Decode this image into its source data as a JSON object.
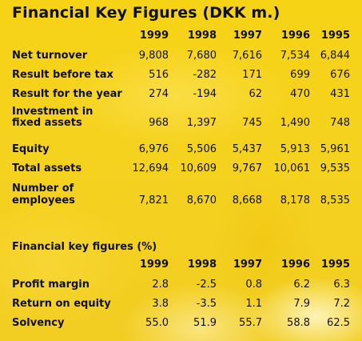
{
  "title": "Financial Key Figures (DKK m.)",
  "years": [
    "1999",
    "1998",
    "1997",
    "1996",
    "1995"
  ],
  "rows": [
    {
      "label_1": "Net turnover",
      "label_2": "",
      "values": [
        "9,808",
        "7,680",
        "7,616",
        "7,534",
        "6,844"
      ]
    },
    {
      "label_1": "Result before tax",
      "label_2": "",
      "values": [
        "516",
        "-282",
        "171",
        "699",
        "676"
      ]
    },
    {
      "label_1": "Result for the year",
      "label_2": "",
      "values": [
        "274",
        "-194",
        "62",
        "470",
        "431"
      ]
    },
    {
      "label_1": "Investment in",
      "label_2": "fixed assets",
      "values": [
        "968",
        "1,397",
        "745",
        "1,490",
        "748"
      ]
    },
    {
      "label_1": "Equity",
      "label_2": "",
      "values": [
        "6,976",
        "5,506",
        "5,437",
        "5,913",
        "5,961"
      ]
    },
    {
      "label_1": "Total assets",
      "label_2": "",
      "values": [
        "12,694",
        "10,609",
        "9,767",
        "10,061",
        "9,535"
      ]
    },
    {
      "label_1": "Number of",
      "label_2": "employees",
      "values": [
        "7,821",
        "8,670",
        "8,668",
        "8,178",
        "8,535"
      ]
    }
  ],
  "key_figures": {
    "title": "Financial key figures (%)",
    "years": [
      "1999",
      "1998",
      "1997",
      "1996",
      "1995"
    ],
    "rows": [
      {
        "label": "Profit margin",
        "values": [
          "2.8",
          "-2.5",
          "0.8",
          "6.2",
          "6.3"
        ]
      },
      {
        "label": "Return on equity",
        "values": [
          "3.8",
          "-3.5",
          "1.1",
          "7.9",
          "7.2"
        ]
      },
      {
        "label": "Solvency",
        "values": [
          "55.0",
          "51.9",
          "55.7",
          "58.8",
          "62.5"
        ]
      }
    ]
  },
  "colors": {
    "background": "#f6d21c",
    "text": "#111111"
  }
}
